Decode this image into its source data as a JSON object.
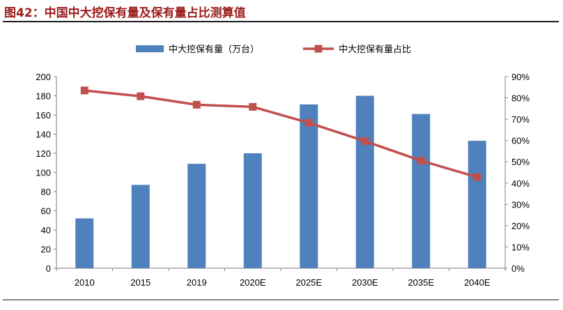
{
  "figure_title": "图42：中国中大挖保有量及保有量占比测算值",
  "chart_data": {
    "type": "bar",
    "categories": [
      "2010",
      "2015",
      "2019",
      "2020E",
      "2025E",
      "2030E",
      "2035E",
      "2040E"
    ],
    "series": [
      {
        "name": "中大挖保有量（万台）",
        "type": "bar",
        "axis": "left",
        "values": [
          52,
          87,
          109,
          120,
          171,
          180,
          161,
          133
        ],
        "color": "#4f81bd"
      },
      {
        "name": "中大挖保有量占比",
        "type": "line",
        "axis": "right",
        "values": [
          0.835,
          0.808,
          0.768,
          0.758,
          0.683,
          0.597,
          0.505,
          0.428
        ],
        "color": "#c0504d"
      }
    ],
    "y_left": {
      "min": 0,
      "max": 200,
      "step": 20,
      "tick_labels": [
        "0",
        "20",
        "40",
        "60",
        "80",
        "100",
        "120",
        "140",
        "160",
        "180",
        "200"
      ]
    },
    "y_right": {
      "min": 0,
      "max": 0.9,
      "step": 0.1,
      "tick_labels": [
        "0%",
        "10%",
        "20%",
        "30%",
        "40%",
        "50%",
        "60%",
        "70%",
        "80%",
        "90%"
      ]
    },
    "grid": false,
    "legend_position": "top-center"
  }
}
